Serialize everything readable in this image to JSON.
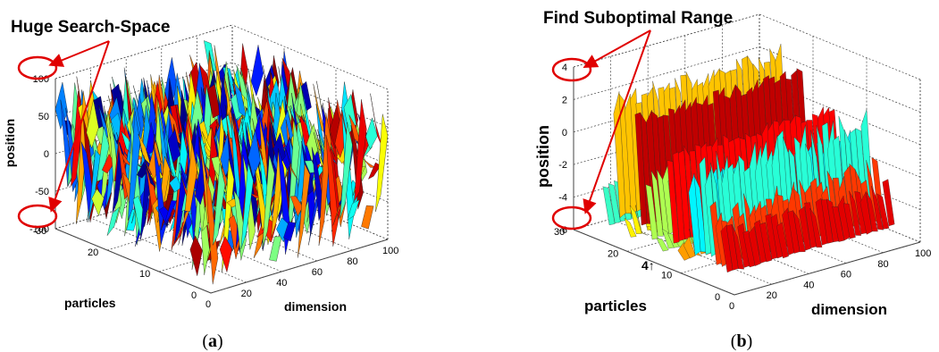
{
  "chart_data": [
    {
      "type": "surface",
      "panel_label": "a",
      "annotation": "Huge Search-Space",
      "xlabel": "dimension",
      "ylabel": "particles",
      "zlabel": "position",
      "xlim": [
        0,
        100
      ],
      "ylim": [
        0,
        30
      ],
      "zlim": [
        -100,
        100
      ],
      "x_ticks": [
        "0",
        "20",
        "40",
        "60",
        "80",
        "100"
      ],
      "y_ticks": [
        "0",
        "10",
        "20",
        "30"
      ],
      "z_ticks": [
        "100",
        "50",
        "0",
        "-50",
        "-100"
      ],
      "highlighted_z_ticks": [
        "100",
        "-100"
      ],
      "grid": true,
      "colormap": "jet",
      "position_range": [
        -100,
        100
      ]
    },
    {
      "type": "surface",
      "panel_label": "b",
      "annotation": "Find Suboptimal Range",
      "xlabel": "dimension",
      "ylabel": "particles",
      "zlabel": "position",
      "xlim": [
        0,
        100
      ],
      "ylim": [
        0,
        30
      ],
      "zlim": [
        -6,
        4
      ],
      "x_ticks": [
        "0",
        "20",
        "40",
        "60",
        "80",
        "100"
      ],
      "y_ticks": [
        "0",
        "10",
        "20",
        "30"
      ],
      "z_ticks": [
        "4",
        "2",
        "0",
        "-2",
        "-4",
        "-6"
      ],
      "highlighted_z_ticks": [
        "4",
        "-6"
      ],
      "grid": true,
      "colormap": "jet",
      "position_range": [
        -6,
        4
      ],
      "stray_text": "4↑"
    }
  ]
}
